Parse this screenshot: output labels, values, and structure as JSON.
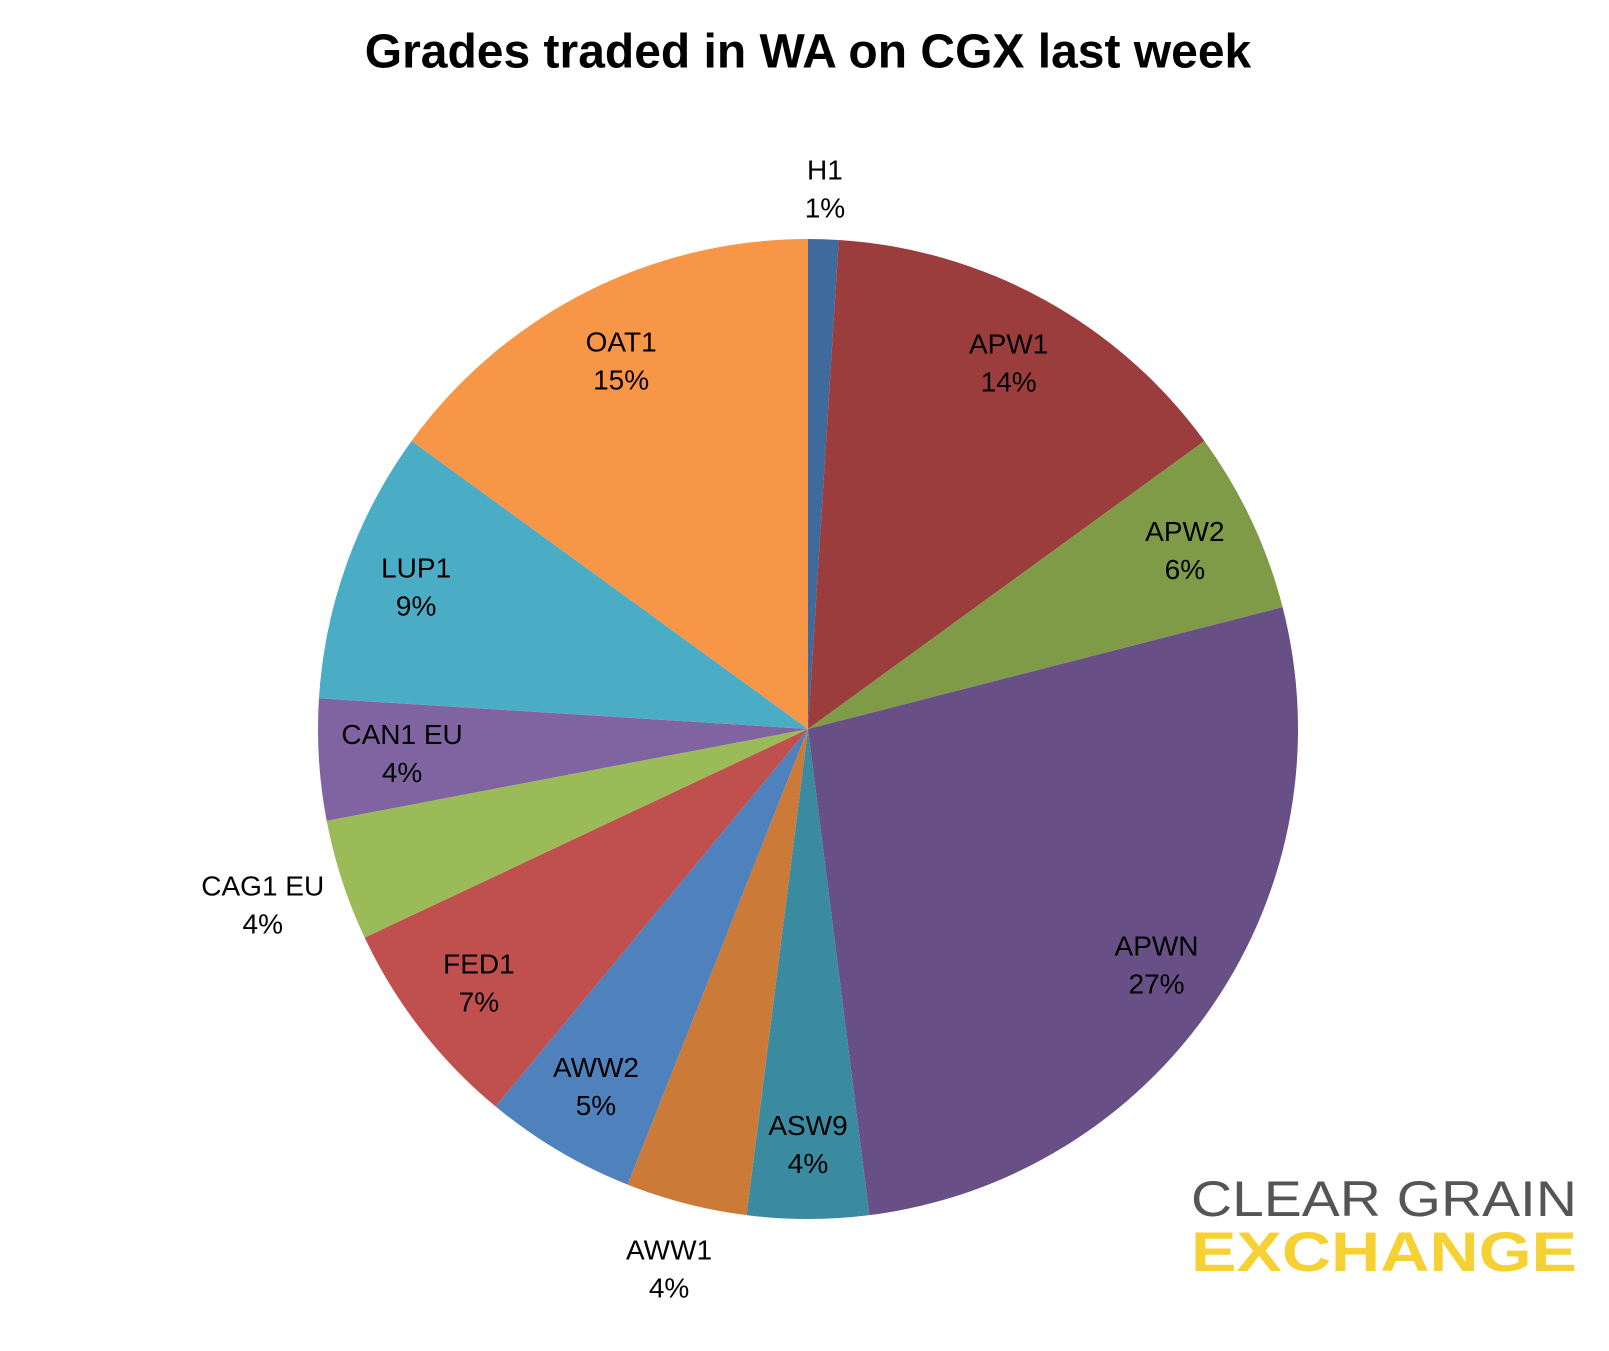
{
  "chart_data": {
    "type": "pie",
    "title": "Grades traded in WA on CGX last week",
    "categories": [
      "H1",
      "APW1",
      "APW2",
      "APWN",
      "ASW9",
      "AWW1",
      "AWW2",
      "FED1",
      "CAG1 EU",
      "CAN1 EU",
      "LUP1",
      "OAT1"
    ],
    "values": [
      1,
      14,
      6,
      27,
      4,
      4,
      5,
      7,
      4,
      4,
      9,
      15
    ],
    "value_labels": [
      "1%",
      "14%",
      "6%",
      "27%",
      "4%",
      "4%",
      "5%",
      "7%",
      "4%",
      "4%",
      "9%",
      "15%"
    ],
    "colors": [
      "#3f6a9e",
      "#9b3d3d",
      "#7f9b48",
      "#684f86",
      "#3a8aa0",
      "#cc7a38",
      "#4f81bd",
      "#c0504d",
      "#9bbb59",
      "#8064a2",
      "#4bacc6",
      "#f79646"
    ]
  },
  "logo": {
    "line1": "CLEAR GRAIN",
    "line2": "EXCHANGE"
  }
}
